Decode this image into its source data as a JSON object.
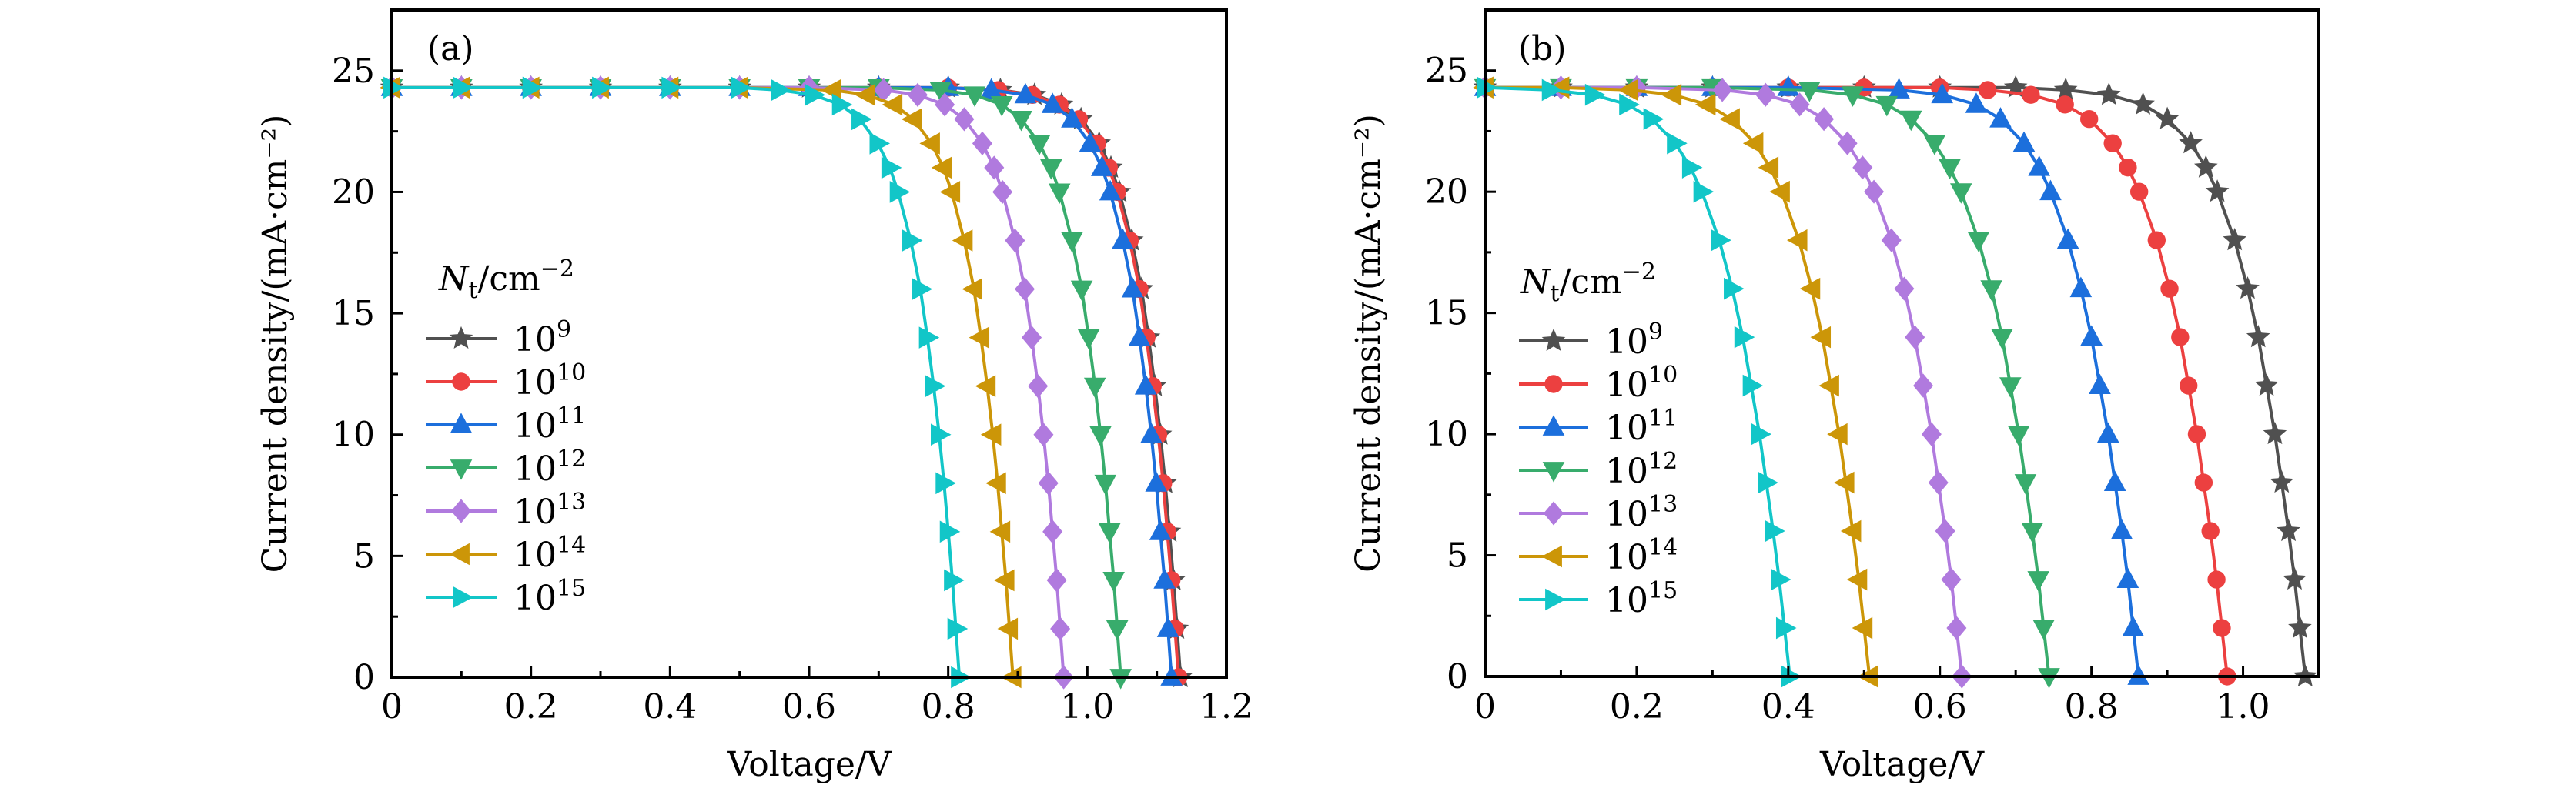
{
  "chart_data": [
    {
      "type": "line",
      "panel_label": "(a)",
      "xlabel": "Voltage/V",
      "ylabel": "Current density/(mA·cm⁻²)",
      "xlim": [
        0,
        1.2
      ],
      "ylim": [
        0,
        27.5
      ],
      "xticks": [
        0,
        0.2,
        0.4,
        0.6,
        0.8,
        1.0,
        1.2
      ],
      "xtick_labels": [
        "0",
        "0.2",
        "0.4",
        "0.6",
        "0.8",
        "1.0",
        "1.2"
      ],
      "x_minor_step": 0.1,
      "yticks": [
        0,
        5,
        10,
        15,
        20,
        25
      ],
      "ytick_labels": [
        "0",
        "5",
        "10",
        "15",
        "20",
        "25"
      ],
      "y_minor_step": 2.5,
      "grid": false,
      "legend": {
        "title_main": "N",
        "title_sub": "t",
        "title_rest": "/cm",
        "title_sup": "−2",
        "placement": "left-center"
      },
      "series": [
        {
          "name": "10^9",
          "base": "10",
          "exp": "9",
          "color": "#505050",
          "marker": "star",
          "v": [
            0,
            0.1,
            0.2,
            0.3,
            0.4,
            0.5,
            0.6,
            0.7,
            0.8,
            0.875,
            0.924,
            0.963,
            0.991,
            1.017,
            1.034,
            1.046,
            1.064,
            1.078,
            1.088,
            1.097,
            1.105,
            1.112,
            1.118,
            1.124,
            1.129,
            1.134
          ],
          "j": [
            24.3,
            24.3,
            24.3,
            24.3,
            24.3,
            24.3,
            24.3,
            24.3,
            24.3,
            24.2,
            24.0,
            23.6,
            23,
            22,
            21,
            20,
            18,
            16,
            14,
            12,
            10,
            8,
            6,
            4,
            2,
            0
          ]
        },
        {
          "name": "10^10",
          "base": "10",
          "exp": "10",
          "color": "#ec4040",
          "marker": "circle",
          "v": [
            0,
            0.1,
            0.2,
            0.3,
            0.4,
            0.5,
            0.6,
            0.7,
            0.8,
            0.872,
            0.921,
            0.96,
            0.988,
            1.014,
            1.031,
            1.043,
            1.061,
            1.075,
            1.085,
            1.094,
            1.102,
            1.109,
            1.115,
            1.121,
            1.126,
            1.131
          ],
          "j": [
            24.3,
            24.3,
            24.3,
            24.3,
            24.3,
            24.3,
            24.3,
            24.3,
            24.3,
            24.2,
            24.0,
            23.6,
            23,
            22,
            21,
            20,
            18,
            16,
            14,
            12,
            10,
            8,
            6,
            4,
            2,
            0
          ]
        },
        {
          "name": "10^11",
          "base": "10",
          "exp": "11",
          "color": "#1c6fdc",
          "marker": "triangle-up",
          "v": [
            0,
            0.1,
            0.2,
            0.3,
            0.4,
            0.5,
            0.6,
            0.7,
            0.8,
            0.862,
            0.911,
            0.95,
            0.978,
            1.004,
            1.021,
            1.033,
            1.051,
            1.065,
            1.075,
            1.084,
            1.092,
            1.099,
            1.105,
            1.111,
            1.116,
            1.121
          ],
          "j": [
            24.3,
            24.3,
            24.3,
            24.3,
            24.3,
            24.3,
            24.3,
            24.3,
            24.3,
            24.2,
            24.0,
            23.6,
            23,
            22,
            21,
            20,
            18,
            16,
            14,
            12,
            10,
            8,
            6,
            4,
            2,
            0
          ]
        },
        {
          "name": "10^12",
          "base": "10",
          "exp": "12",
          "color": "#38ac6c",
          "marker": "triangle-down",
          "v": [
            0,
            0.1,
            0.2,
            0.3,
            0.4,
            0.5,
            0.6,
            0.7,
            0.789,
            0.838,
            0.877,
            0.905,
            0.931,
            0.948,
            0.96,
            0.978,
            0.992,
            1.002,
            1.011,
            1.019,
            1.026,
            1.032,
            1.038,
            1.043,
            1.048
          ],
          "j": [
            24.3,
            24.3,
            24.3,
            24.3,
            24.3,
            24.3,
            24.3,
            24.3,
            24.2,
            24.0,
            23.6,
            23,
            22,
            21,
            20,
            18,
            16,
            14,
            12,
            10,
            8,
            6,
            4,
            2,
            0
          ]
        },
        {
          "name": "10^13",
          "base": "10",
          "exp": "13",
          "color": "#b07ade",
          "marker": "diamond",
          "v": [
            0,
            0.1,
            0.2,
            0.3,
            0.4,
            0.5,
            0.6,
            0.707,
            0.756,
            0.795,
            0.823,
            0.849,
            0.866,
            0.878,
            0.896,
            0.91,
            0.92,
            0.929,
            0.937,
            0.944,
            0.95,
            0.956,
            0.961,
            0.966
          ],
          "j": [
            24.3,
            24.3,
            24.3,
            24.3,
            24.3,
            24.3,
            24.3,
            24.2,
            24.0,
            23.6,
            23,
            22,
            21,
            20,
            18,
            16,
            14,
            12,
            10,
            8,
            6,
            4,
            2,
            0
          ]
        },
        {
          "name": "10^14",
          "base": "10",
          "exp": "14",
          "color": "#cc9608",
          "marker": "triangle-left",
          "v": [
            0,
            0.1,
            0.2,
            0.3,
            0.4,
            0.5,
            0.634,
            0.683,
            0.722,
            0.75,
            0.776,
            0.793,
            0.805,
            0.823,
            0.837,
            0.847,
            0.856,
            0.864,
            0.871,
            0.877,
            0.883,
            0.888,
            0.893
          ],
          "j": [
            24.3,
            24.3,
            24.3,
            24.3,
            24.3,
            24.3,
            24.2,
            24.0,
            23.6,
            23,
            22,
            21,
            20,
            18,
            16,
            14,
            12,
            10,
            8,
            6,
            4,
            2,
            0
          ]
        },
        {
          "name": "10^15",
          "base": "10",
          "exp": "15",
          "color": "#12c6c8",
          "marker": "triangle-right",
          "v": [
            0,
            0.1,
            0.2,
            0.3,
            0.4,
            0.5,
            0.557,
            0.606,
            0.645,
            0.673,
            0.699,
            0.716,
            0.728,
            0.746,
            0.76,
            0.77,
            0.779,
            0.787,
            0.794,
            0.8,
            0.806,
            0.811,
            0.816
          ],
          "j": [
            24.3,
            24.3,
            24.3,
            24.3,
            24.3,
            24.3,
            24.2,
            24.0,
            23.6,
            23,
            22,
            21,
            20,
            18,
            16,
            14,
            12,
            10,
            8,
            6,
            4,
            2,
            0
          ]
        }
      ]
    },
    {
      "type": "line",
      "panel_label": "(b)",
      "xlabel": "Voltage/V",
      "ylabel": "Current density/(mA·cm⁻²)",
      "xlim": [
        0,
        1.1
      ],
      "ylim": [
        0,
        27.5
      ],
      "xticks": [
        0,
        0.2,
        0.4,
        0.6,
        0.8,
        1.0
      ],
      "xtick_labels": [
        "0",
        "0.2",
        "0.4",
        "0.6",
        "0.8",
        "1.0"
      ],
      "x_minor_step": 0.1,
      "yticks": [
        0,
        5,
        10,
        15,
        20,
        25
      ],
      "ytick_labels": [
        "0",
        "5",
        "10",
        "15",
        "20",
        "25"
      ],
      "y_minor_step": 2.5,
      "grid": false,
      "legend": {
        "title_main": "N",
        "title_sub": "t",
        "title_rest": "/cm",
        "title_sup": "−2",
        "placement": "left-center"
      },
      "series": [
        {
          "name": "10^9",
          "base": "10",
          "exp": "9",
          "color": "#505050",
          "marker": "star",
          "v": [
            0,
            0.1,
            0.2,
            0.3,
            0.4,
            0.5,
            0.6,
            0.7,
            0.766,
            0.823,
            0.868,
            0.9,
            0.931,
            0.951,
            0.966,
            0.989,
            1.006,
            1.02,
            1.031,
            1.042,
            1.051,
            1.06,
            1.068,
            1.075,
            1.082
          ],
          "j": [
            24.3,
            24.3,
            24.3,
            24.3,
            24.3,
            24.3,
            24.3,
            24.3,
            24.2,
            24.0,
            23.6,
            23,
            22,
            21,
            20,
            18,
            16,
            14,
            12,
            10,
            8,
            6,
            4,
            2,
            0
          ]
        },
        {
          "name": "10^10",
          "base": "10",
          "exp": "10",
          "color": "#ec4040",
          "marker": "circle",
          "v": [
            0,
            0.1,
            0.2,
            0.3,
            0.4,
            0.5,
            0.6,
            0.663,
            0.72,
            0.765,
            0.797,
            0.828,
            0.848,
            0.863,
            0.886,
            0.903,
            0.917,
            0.928,
            0.939,
            0.948,
            0.957,
            0.965,
            0.972,
            0.979
          ],
          "j": [
            24.3,
            24.3,
            24.3,
            24.3,
            24.3,
            24.3,
            24.3,
            24.2,
            24.0,
            23.6,
            23,
            22,
            21,
            20,
            18,
            16,
            14,
            12,
            10,
            8,
            6,
            4,
            2,
            0
          ]
        },
        {
          "name": "10^11",
          "base": "10",
          "exp": "11",
          "color": "#1c6fdc",
          "marker": "triangle-up",
          "v": [
            0,
            0.1,
            0.2,
            0.3,
            0.4,
            0.546,
            0.603,
            0.648,
            0.68,
            0.711,
            0.731,
            0.746,
            0.769,
            0.786,
            0.8,
            0.811,
            0.822,
            0.831,
            0.84,
            0.848,
            0.855,
            0.862
          ],
          "j": [
            24.3,
            24.3,
            24.3,
            24.3,
            24.3,
            24.2,
            24.0,
            23.6,
            23,
            22,
            21,
            20,
            18,
            16,
            14,
            12,
            10,
            8,
            6,
            4,
            2,
            0
          ]
        },
        {
          "name": "10^12",
          "base": "10",
          "exp": "12",
          "color": "#38ac6c",
          "marker": "triangle-down",
          "v": [
            0,
            0.1,
            0.2,
            0.3,
            0.428,
            0.485,
            0.53,
            0.562,
            0.593,
            0.613,
            0.628,
            0.651,
            0.668,
            0.682,
            0.693,
            0.704,
            0.713,
            0.722,
            0.73,
            0.737,
            0.744
          ],
          "j": [
            24.3,
            24.3,
            24.3,
            24.3,
            24.2,
            24.0,
            23.6,
            23,
            22,
            21,
            20,
            18,
            16,
            14,
            12,
            10,
            8,
            6,
            4,
            2,
            0
          ]
        },
        {
          "name": "10^13",
          "base": "10",
          "exp": "13",
          "color": "#b07ade",
          "marker": "diamond",
          "v": [
            0,
            0.1,
            0.2,
            0.313,
            0.37,
            0.415,
            0.447,
            0.478,
            0.498,
            0.513,
            0.536,
            0.553,
            0.567,
            0.578,
            0.589,
            0.598,
            0.607,
            0.615,
            0.622,
            0.629
          ],
          "j": [
            24.3,
            24.3,
            24.3,
            24.2,
            24.0,
            23.6,
            23,
            22,
            21,
            20,
            18,
            16,
            14,
            12,
            10,
            8,
            6,
            4,
            2,
            0
          ]
        },
        {
          "name": "10^14",
          "base": "10",
          "exp": "14",
          "color": "#cc9608",
          "marker": "triangle-left",
          "v": [
            0,
            0.1,
            0.191,
            0.248,
            0.293,
            0.325,
            0.356,
            0.376,
            0.391,
            0.414,
            0.431,
            0.445,
            0.456,
            0.467,
            0.476,
            0.485,
            0.493,
            0.5,
            0.507
          ],
          "j": [
            24.3,
            24.3,
            24.2,
            24.0,
            23.6,
            23,
            22,
            21,
            20,
            18,
            16,
            14,
            12,
            10,
            8,
            6,
            4,
            2,
            0
          ]
        },
        {
          "name": "10^15",
          "base": "10",
          "exp": "15",
          "color": "#12c6c8",
          "marker": "triangle-right",
          "v": [
            0,
            0.086,
            0.143,
            0.188,
            0.22,
            0.251,
            0.271,
            0.286,
            0.309,
            0.326,
            0.34,
            0.351,
            0.362,
            0.371,
            0.38,
            0.388,
            0.395,
            0.402
          ],
          "j": [
            24.3,
            24.2,
            24.0,
            23.6,
            23,
            22,
            21,
            20,
            18,
            16,
            14,
            12,
            10,
            8,
            6,
            4,
            2,
            0
          ]
        }
      ]
    }
  ]
}
